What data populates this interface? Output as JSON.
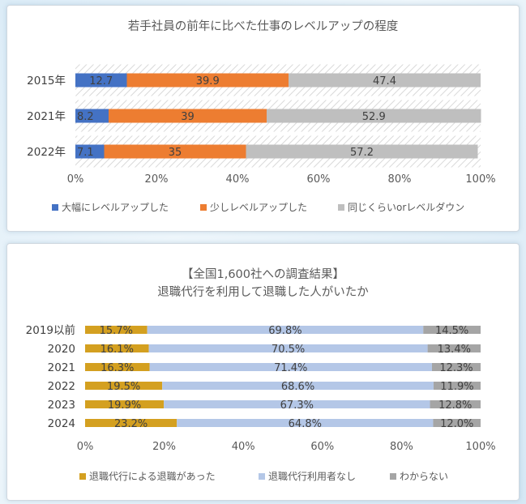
{
  "colors": {
    "blue": "#4472c4",
    "orange": "#ed7d31",
    "gray": "#a5a5a5",
    "gold": "#d4a020",
    "lightblue": "#b4c7e7"
  },
  "chart_data": [
    {
      "type": "bar",
      "orientation": "horizontal",
      "stacked": "100%",
      "title": "若手社員の前年に比べた仕事のレベルアップの程度",
      "subtitle": "",
      "categories": [
        "2015年",
        "2021年",
        "2022年"
      ],
      "series": [
        {
          "name": "大幅にレベルアップした",
          "values": [
            12.7,
            8.2,
            7.1
          ],
          "labels": [
            "12.7",
            "8.2",
            "7.1"
          ],
          "color": "#4472c4"
        },
        {
          "name": "少しレベルアップした",
          "values": [
            39.9,
            39,
            35
          ],
          "labels": [
            "39.9",
            "39",
            "35"
          ],
          "color": "#ed7d31"
        },
        {
          "name": "同じくらいorレベルダウン",
          "values": [
            47.4,
            52.9,
            57.2
          ],
          "labels": [
            "47.4",
            "52.9",
            "57.2"
          ],
          "color": "#bfbfbf"
        }
      ],
      "xticks": [
        "0%",
        "20%",
        "40%",
        "60%",
        "80%",
        "100%"
      ],
      "xlim": [
        0,
        100
      ],
      "grid": false,
      "legend_position": "bottom"
    },
    {
      "type": "bar",
      "orientation": "horizontal",
      "stacked": "100%",
      "title": "【全国1,600社への調査結果】",
      "subtitle": "退職代行を利用して退職した人がいたか",
      "categories": [
        "2019以前",
        "2020",
        "2021",
        "2022",
        "2023",
        "2024"
      ],
      "series": [
        {
          "name": "退職代行による退職があった",
          "values": [
            15.7,
            16.1,
            16.3,
            19.5,
            19.9,
            23.2
          ],
          "labels": [
            "15.7%",
            "16.1%",
            "16.3%",
            "19.5%",
            "19.9%",
            "23.2%"
          ],
          "color": "#d4a020"
        },
        {
          "name": "退職代行利用者なし",
          "values": [
            69.8,
            70.5,
            71.4,
            68.6,
            67.3,
            64.8
          ],
          "labels": [
            "69.8%",
            "70.5%",
            "71.4%",
            "68.6%",
            "67.3%",
            "64.8%"
          ],
          "color": "#b4c7e7"
        },
        {
          "name": "わからない",
          "values": [
            14.5,
            13.4,
            12.3,
            11.9,
            12.8,
            12.0
          ],
          "labels": [
            "14.5%",
            "13.4%",
            "12.3%",
            "11.9%",
            "12.8%",
            "12.0%"
          ],
          "color": "#a5a5a5"
        }
      ],
      "xticks": [
        "0%",
        "20%",
        "40%",
        "60%",
        "80%",
        "100%"
      ],
      "xlim": [
        0,
        100
      ],
      "grid": false,
      "legend_position": "bottom"
    }
  ]
}
